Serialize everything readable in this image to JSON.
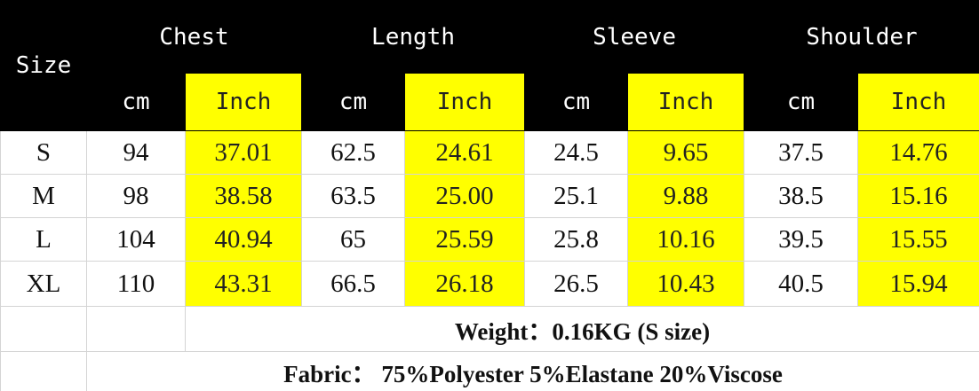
{
  "header": {
    "size": "Size",
    "groups": [
      {
        "name": "Chest",
        "units": [
          "cm",
          "Inch"
        ]
      },
      {
        "name": "Length",
        "units": [
          "cm",
          "Inch"
        ]
      },
      {
        "name": "Sleeve",
        "units": [
          "cm",
          "Inch"
        ]
      },
      {
        "name": "Shoulder",
        "units": [
          "cm",
          "Inch"
        ]
      }
    ]
  },
  "rows": [
    [
      "S",
      "94",
      "37.01",
      "62.5",
      "24.61",
      "24.5",
      "9.65",
      "37.5",
      "14.76"
    ],
    [
      "M",
      "98",
      "38.58",
      "63.5",
      "25.00",
      "25.1",
      "9.88",
      "38.5",
      "15.16"
    ],
    [
      "L",
      "104",
      "40.94",
      "65",
      "25.59",
      "25.8",
      "10.16",
      "39.5",
      "15.55"
    ],
    [
      "XL",
      "110",
      "43.31",
      "66.5",
      "26.18",
      "26.5",
      "10.43",
      "40.5",
      "15.94"
    ]
  ],
  "footer": {
    "weight": "Weight：0.16KG (S size)",
    "fabric": "Fabric： 75%Polyester 5%Elastane 20%Viscose"
  }
}
